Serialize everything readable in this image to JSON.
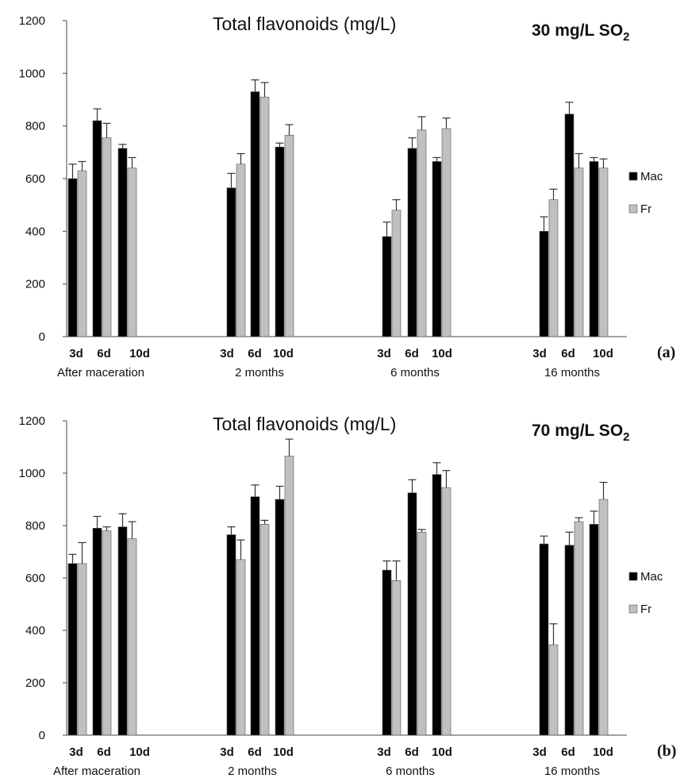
{
  "chart_data": [
    {
      "type": "bar",
      "panel_label": "(a)",
      "title": "Total flavonoids (mg/L)",
      "condition_label": "30 mg/L SO",
      "condition_subscript": "2",
      "ylim": [
        0,
        1200
      ],
      "yticks": [
        0,
        200,
        400,
        600,
        800,
        1000,
        1200
      ],
      "categories": [
        "3d",
        "6d",
        "10d"
      ],
      "groups": [
        "After maceration",
        "2 months",
        "6 months",
        "16 months"
      ],
      "legend": {
        "position": "right",
        "entries": [
          "Mac",
          "Fr"
        ]
      },
      "series": [
        {
          "name": "Mac",
          "color": "#000000",
          "values": [
            [
              600,
              820,
              715
            ],
            [
              565,
              930,
              720
            ],
            [
              380,
              715,
              665
            ],
            [
              400,
              845,
              665
            ]
          ],
          "errors": [
            [
              55,
              45,
              15
            ],
            [
              55,
              45,
              15
            ],
            [
              55,
              40,
              15
            ],
            [
              55,
              45,
              15
            ]
          ]
        },
        {
          "name": "Fr",
          "color": "#c0c0c0",
          "values": [
            [
              630,
              755,
              640
            ],
            [
              655,
              910,
              765
            ],
            [
              480,
              785,
              790
            ],
            [
              520,
              640,
              640
            ]
          ],
          "errors": [
            [
              35,
              55,
              40
            ],
            [
              40,
              55,
              40
            ],
            [
              40,
              50,
              40
            ],
            [
              40,
              55,
              35
            ]
          ]
        }
      ]
    },
    {
      "type": "bar",
      "panel_label": "(b)",
      "title": "Total flavonoids (mg/L)",
      "condition_label": "70 mg/L SO",
      "condition_subscript": "2",
      "ylim": [
        0,
        1200
      ],
      "yticks": [
        0,
        200,
        400,
        600,
        800,
        1000,
        1200
      ],
      "categories": [
        "3d",
        "6d",
        "10d"
      ],
      "groups": [
        "After maceration",
        "2 months",
        "6 months",
        "16 months"
      ],
      "legend": {
        "position": "right",
        "entries": [
          "Mac",
          "Fr"
        ]
      },
      "series": [
        {
          "name": "Mac",
          "color": "#000000",
          "values": [
            [
              655,
              790,
              795
            ],
            [
              765,
              910,
              900
            ],
            [
              630,
              925,
              995
            ],
            [
              730,
              725,
              805
            ]
          ],
          "errors": [
            [
              35,
              45,
              50
            ],
            [
              30,
              45,
              50
            ],
            [
              35,
              50,
              45
            ],
            [
              30,
              50,
              50
            ]
          ]
        },
        {
          "name": "Fr",
          "color": "#c0c0c0",
          "values": [
            [
              655,
              780,
              750
            ],
            [
              670,
              805,
              1065
            ],
            [
              590,
              775,
              945
            ],
            [
              345,
              815,
              900
            ]
          ],
          "errors": [
            [
              80,
              15,
              65
            ],
            [
              75,
              15,
              65
            ],
            [
              75,
              10,
              65
            ],
            [
              80,
              15,
              65
            ]
          ]
        }
      ]
    }
  ]
}
